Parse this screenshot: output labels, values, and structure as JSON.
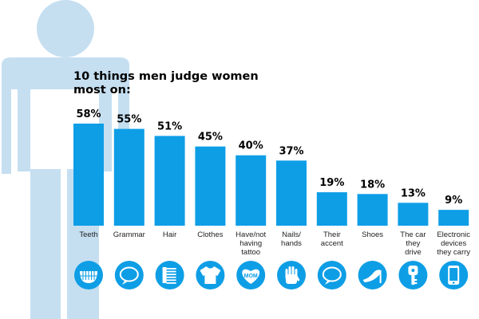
{
  "colors": {
    "bar": "#0e9ee6",
    "figure": "#c5dff1",
    "icon_circle": "#0e9ee6",
    "icon_glyph": "#ffffff",
    "value_text": "#000000",
    "label_text": "#222222"
  },
  "chart_data": {
    "type": "bar",
    "title": "10 things men judge women most on:",
    "categories": [
      "Teeth",
      "Grammar",
      "Hair",
      "Clothes",
      "Have/not having tattoo",
      "Nails/ hands",
      "Their accent",
      "Shoes",
      "The car they drive",
      "Electronic devices they carry"
    ],
    "category_lines": [
      [
        "Teeth"
      ],
      [
        "Grammar"
      ],
      [
        "Hair"
      ],
      [
        "Clothes"
      ],
      [
        "Have/not",
        "having",
        "tattoo"
      ],
      [
        "Nails/",
        "hands"
      ],
      [
        "Their",
        "accent"
      ],
      [
        "Shoes"
      ],
      [
        "The car",
        "they",
        "drive"
      ],
      [
        "Electronic",
        "devices",
        "they carry"
      ]
    ],
    "values": [
      58,
      55,
      51,
      45,
      40,
      37,
      19,
      18,
      13,
      9
    ],
    "value_labels": [
      "58%",
      "55%",
      "51%",
      "45%",
      "40%",
      "37%",
      "19%",
      "18%",
      "13%",
      "9%"
    ],
    "ylim": [
      0,
      100
    ],
    "grid": false,
    "icons": [
      "teeth-icon",
      "speech-bubble-icon",
      "comb-icon",
      "shirt-icon",
      "tattoo-heart-icon",
      "hand-icon",
      "speech-bubble-icon",
      "high-heel-icon",
      "car-key-icon",
      "smartphone-icon"
    ],
    "icon_texts": [
      "",
      "",
      "",
      "",
      "MOM",
      "",
      "",
      "",
      "",
      ""
    ]
  }
}
